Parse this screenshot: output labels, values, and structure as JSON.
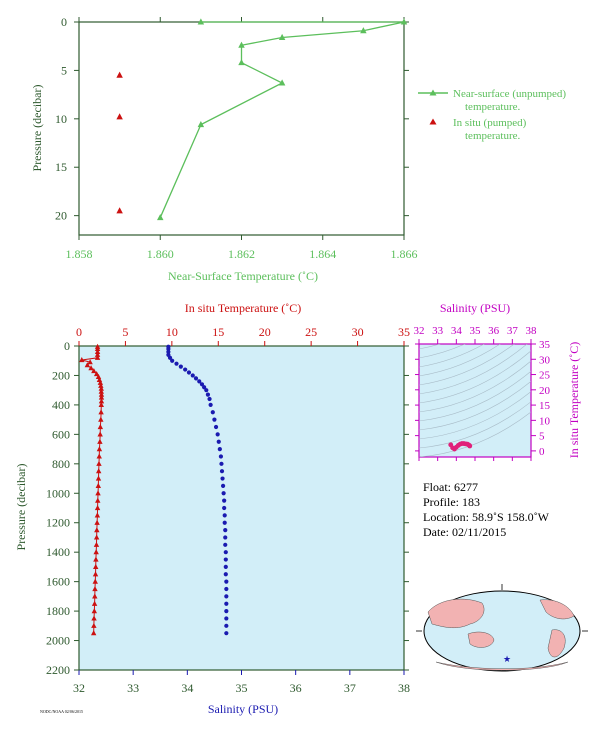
{
  "chart_data": [
    {
      "type": "line",
      "xlabel": "Near-Surface Temperature (˚C)",
      "ylabel": "Pressure (decibar)",
      "xlim": [
        1.858,
        1.866
      ],
      "ylim": [
        22,
        0
      ],
      "y_inverted": true,
      "xticks": [
        "1.858",
        "1.860",
        "1.862",
        "1.864",
        "1.866"
      ],
      "yticks": [
        "0",
        "5",
        "10",
        "15",
        "20"
      ],
      "legend_position": "right",
      "series": [
        {
          "name": "Near-surface (unpumped) temperature.",
          "color": "#5cbf5c",
          "marker": "triangle",
          "points": [
            [
              1.861,
              0.0
            ],
            [
              1.866,
              0.0
            ],
            [
              1.865,
              0.9
            ],
            [
              1.863,
              1.6
            ],
            [
              1.862,
              2.4
            ],
            [
              1.862,
              4.2
            ],
            [
              1.863,
              6.3
            ],
            [
              1.861,
              10.6
            ],
            [
              1.86,
              20.2
            ]
          ]
        },
        {
          "name": "In situ (pumped) temperature.",
          "color": "#cc1111",
          "marker": "triangle",
          "points": [
            [
              1.859,
              5.5
            ],
            [
              1.859,
              9.8
            ],
            [
              1.859,
              19.5
            ]
          ]
        }
      ]
    },
    {
      "type": "line",
      "xlabel_top": "In situ Temperature (˚C)",
      "xlabel_bottom": "Salinity (PSU)",
      "ylabel": "Pressure (decibar)",
      "temp_xlim": [
        0,
        35
      ],
      "sal_xlim": [
        32,
        38
      ],
      "ylim": [
        2200,
        0
      ],
      "y_inverted": true,
      "temp_ticks": [
        "0",
        "5",
        "10",
        "15",
        "20",
        "25",
        "30",
        "35"
      ],
      "sal_ticks": [
        "32",
        "33",
        "34",
        "35",
        "36",
        "37",
        "38"
      ],
      "pressure_ticks": [
        "0",
        "200",
        "400",
        "600",
        "800",
        "1000",
        "1200",
        "1400",
        "1600",
        "1800",
        "2000",
        "2200"
      ],
      "background": "#d2eef8",
      "series": [
        {
          "name": "In situ Temperature",
          "color": "#cc1111",
          "marker": "triangle",
          "points": [
            [
              2.0,
              5
            ],
            [
              2.0,
              20
            ],
            [
              2.0,
              40
            ],
            [
              2.0,
              60
            ],
            [
              2.0,
              80
            ],
            [
              0.3,
              95
            ],
            [
              1.2,
              110
            ],
            [
              0.9,
              130
            ],
            [
              1.3,
              150
            ],
            [
              1.6,
              170
            ],
            [
              1.9,
              190
            ],
            [
              2.1,
              210
            ],
            [
              2.2,
              230
            ],
            [
              2.3,
              250
            ],
            [
              2.35,
              270
            ],
            [
              2.4,
              290
            ],
            [
              2.4,
              310
            ],
            [
              2.42,
              330
            ],
            [
              2.42,
              350
            ],
            [
              2.42,
              375
            ],
            [
              2.4,
              400
            ],
            [
              2.38,
              450
            ],
            [
              2.35,
              500
            ],
            [
              2.3,
              550
            ],
            [
              2.28,
              600
            ],
            [
              2.25,
              650
            ],
            [
              2.2,
              700
            ],
            [
              2.18,
              750
            ],
            [
              2.15,
              800
            ],
            [
              2.12,
              850
            ],
            [
              2.1,
              900
            ],
            [
              2.08,
              950
            ],
            [
              2.05,
              1000
            ],
            [
              2.02,
              1050
            ],
            [
              2.0,
              1100
            ],
            [
              1.98,
              1150
            ],
            [
              1.95,
              1200
            ],
            [
              1.92,
              1250
            ],
            [
              1.9,
              1300
            ],
            [
              1.88,
              1350
            ],
            [
              1.85,
              1400
            ],
            [
              1.82,
              1450
            ],
            [
              1.8,
              1500
            ],
            [
              1.78,
              1550
            ],
            [
              1.75,
              1600
            ],
            [
              1.72,
              1650
            ],
            [
              1.7,
              1700
            ],
            [
              1.68,
              1750
            ],
            [
              1.65,
              1800
            ],
            [
              1.62,
              1850
            ],
            [
              1.6,
              1900
            ],
            [
              1.58,
              1950
            ]
          ]
        },
        {
          "name": "Salinity",
          "color": "#1a1ab0",
          "marker": "circle",
          "points": [
            [
              33.65,
              5
            ],
            [
              33.65,
              20
            ],
            [
              33.65,
              40
            ],
            [
              33.65,
              60
            ],
            [
              33.68,
              80
            ],
            [
              33.72,
              100
            ],
            [
              33.8,
              120
            ],
            [
              33.88,
              140
            ],
            [
              33.96,
              160
            ],
            [
              34.03,
              180
            ],
            [
              34.1,
              200
            ],
            [
              34.16,
              220
            ],
            [
              34.22,
              240
            ],
            [
              34.27,
              260
            ],
            [
              34.31,
              280
            ],
            [
              34.35,
              300
            ],
            [
              34.38,
              330
            ],
            [
              34.41,
              360
            ],
            [
              34.43,
              400
            ],
            [
              34.47,
              450
            ],
            [
              34.5,
              500
            ],
            [
              34.53,
              550
            ],
            [
              34.56,
              600
            ],
            [
              34.58,
              650
            ],
            [
              34.6,
              700
            ],
            [
              34.62,
              750
            ],
            [
              34.63,
              800
            ],
            [
              34.64,
              850
            ],
            [
              34.65,
              900
            ],
            [
              34.66,
              950
            ],
            [
              34.67,
              1000
            ],
            [
              34.68,
              1050
            ],
            [
              34.68,
              1100
            ],
            [
              34.69,
              1150
            ],
            [
              34.69,
              1200
            ],
            [
              34.7,
              1250
            ],
            [
              34.7,
              1300
            ],
            [
              34.7,
              1350
            ],
            [
              34.71,
              1400
            ],
            [
              34.71,
              1450
            ],
            [
              34.71,
              1500
            ],
            [
              34.71,
              1550
            ],
            [
              34.72,
              1600
            ],
            [
              34.72,
              1650
            ],
            [
              34.72,
              1700
            ],
            [
              34.72,
              1750
            ],
            [
              34.72,
              1800
            ],
            [
              34.72,
              1850
            ],
            [
              34.72,
              1900
            ],
            [
              34.72,
              1950
            ]
          ]
        }
      ]
    },
    {
      "type": "scatter",
      "title": "Salinity (PSU)",
      "ylabel": "In situ Temperature (˚C)",
      "sal_xlim": [
        32,
        38
      ],
      "temp_ylim": [
        -2,
        35
      ],
      "sal_ticks": [
        "32",
        "33",
        "34",
        "35",
        "36",
        "37",
        "38"
      ],
      "temp_ticks": [
        "0",
        "5",
        "10",
        "15",
        "20",
        "25",
        "30",
        "35"
      ],
      "color": "#e0207a",
      "points": [
        [
          33.7,
          2.0
        ],
        [
          33.8,
          1.0
        ],
        [
          33.9,
          0.6
        ],
        [
          34.0,
          1.2
        ],
        [
          34.1,
          1.8
        ],
        [
          34.2,
          2.2
        ],
        [
          34.3,
          2.4
        ],
        [
          34.4,
          2.4
        ],
        [
          34.5,
          2.3
        ],
        [
          34.6,
          2.2
        ],
        [
          34.65,
          2.0
        ],
        [
          34.7,
          1.8
        ],
        [
          34.72,
          1.6
        ]
      ]
    }
  ],
  "float_info": {
    "float": "Float:  6277",
    "profile": "Profile:  183",
    "location": "Location:  58.9˚S  158.0˚W",
    "date": "Date:  02/11/2015"
  },
  "footer": "NODC/NOAA 02/06/2015",
  "colors": {
    "axis_green": "#2f5a2f",
    "light_green": "#5cbf5c",
    "red": "#cc1111",
    "blue": "#1a1ab0",
    "magenta": "#c200c2",
    "panel_bg": "#d2eef8"
  }
}
